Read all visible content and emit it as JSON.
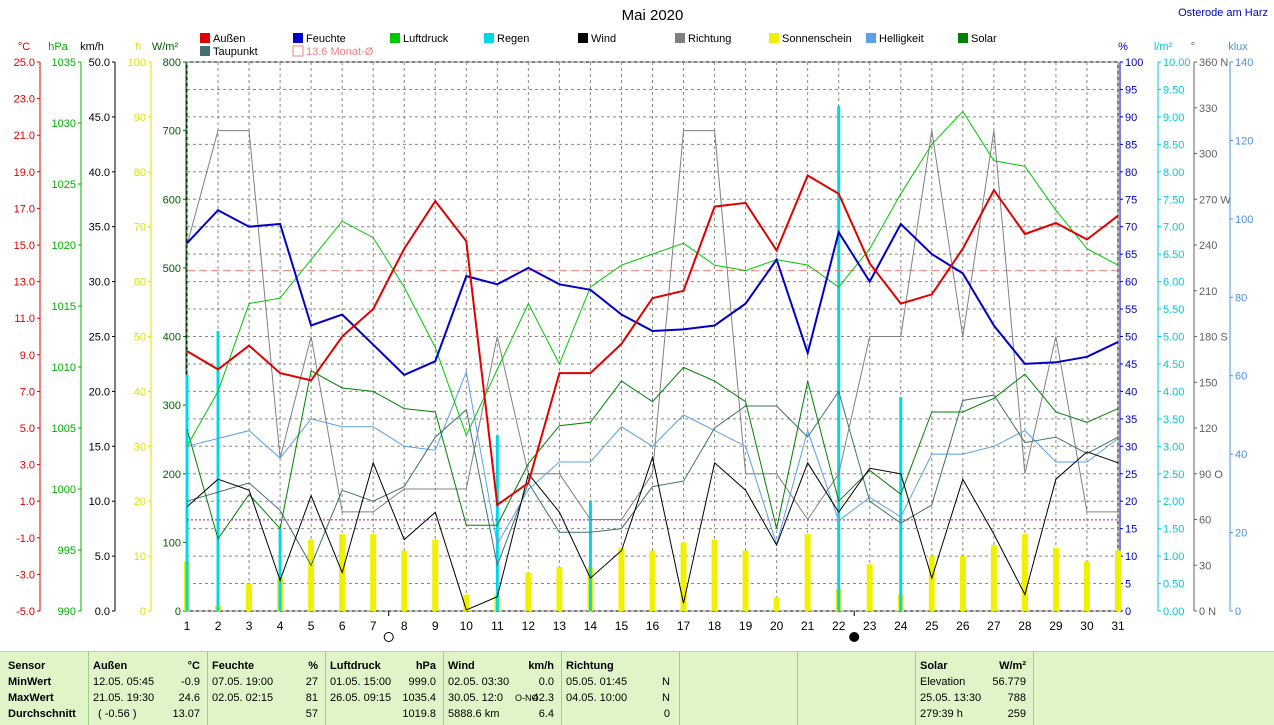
{
  "chart_data": {
    "type": "line",
    "title": "Mai 2020",
    "location": "Osterode am Harz",
    "x": [
      1,
      2,
      3,
      4,
      5,
      6,
      7,
      8,
      9,
      10,
      11,
      12,
      13,
      14,
      15,
      16,
      17,
      18,
      19,
      20,
      21,
      22,
      23,
      24,
      25,
      26,
      27,
      28,
      29,
      30,
      31
    ],
    "xlim": [
      1,
      31
    ],
    "moon_markers": [
      {
        "day": 7.5,
        "phase": "full"
      },
      {
        "day": 22.5,
        "phase": "new"
      }
    ],
    "axes_left": [
      {
        "unit": "°C",
        "color": "#e00000",
        "range": [
          -5,
          25
        ],
        "ticks": [
          "25.0",
          "23.0",
          "21.0",
          "19.0",
          "17.0",
          "15.0",
          "13.0",
          "11.0",
          "9.0",
          "7.0",
          "5.0",
          "3.0",
          "1.0",
          "-1.0",
          "-3.0",
          "-5.0"
        ]
      },
      {
        "unit": "hPa",
        "color": "#00b000",
        "range": [
          990,
          1040
        ],
        "ticks": [
          "1035",
          "1030",
          "1025",
          "1020",
          "1015",
          "1010",
          "1005",
          "1000",
          "995",
          "990"
        ]
      },
      {
        "unit": "km/h",
        "color": "#000000",
        "range": [
          0,
          50
        ],
        "ticks": [
          "50.0",
          "45.0",
          "40.0",
          "35.0",
          "30.0",
          "25.0",
          "20.0",
          "15.0",
          "10.0",
          "5.0",
          "0.0"
        ]
      },
      {
        "unit": "h",
        "color": "#e0e000",
        "range": [
          0,
          100
        ],
        "ticks": [
          "100",
          "90",
          "80",
          "70",
          "60",
          "50",
          "40",
          "30",
          "20",
          "10",
          "0"
        ]
      },
      {
        "unit": "W/m²",
        "color": "#006000",
        "range": [
          0,
          800
        ],
        "ticks": [
          "800",
          "700",
          "600",
          "500",
          "400",
          "300",
          "200",
          "100",
          "0"
        ]
      }
    ],
    "axes_right": [
      {
        "unit": "%",
        "color": "#0000c0",
        "range": [
          0,
          100
        ],
        "ticks": [
          "100",
          "95",
          "90",
          "85",
          "80",
          "75",
          "70",
          "65",
          "60",
          "55",
          "50",
          "45",
          "40",
          "35",
          "30",
          "25",
          "20",
          "15",
          "10",
          "5",
          "0"
        ]
      },
      {
        "unit": "l/m²",
        "color": "#00c8d8",
        "range": [
          0,
          10
        ],
        "ticks": [
          "10.00",
          "9.50",
          "9.00",
          "8.50",
          "8.00",
          "7.50",
          "7.00",
          "6.50",
          "6.00",
          "5.50",
          "5.00",
          "4.50",
          "4.00",
          "3.50",
          "3.00",
          "2.50",
          "2.00",
          "1.50",
          "1.00",
          "0.50",
          "0.00"
        ]
      },
      {
        "unit": "°",
        "color": "#606060",
        "range": [
          0,
          360
        ],
        "ticks": [
          "360 N",
          "330",
          "300",
          "270 W",
          "240",
          "210",
          "180 S",
          "150",
          "120",
          "90 O",
          "60",
          "30",
          "0 N"
        ]
      },
      {
        "unit": "klux",
        "color": "#4a90e0",
        "range": [
          0,
          140
        ],
        "ticks": [
          "140",
          "120",
          "100",
          "80",
          "60",
          "40",
          "20",
          "0"
        ]
      }
    ],
    "reference_line": {
      "name": "13.6 Monat-Ø",
      "value": 13.6,
      "unit": "°C",
      "color": "#f08080"
    },
    "wind_reference": {
      "value": 8.3,
      "unit": "km/h",
      "color": "#c000c0"
    },
    "series": [
      {
        "name": "Außen",
        "axis": "°C",
        "color": "#e00000",
        "values": [
          9.2,
          8.2,
          9.5,
          8.0,
          7.6,
          10.0,
          11.5,
          14.8,
          17.4,
          15.2,
          0.8,
          2.0,
          8.0,
          8.0,
          9.6,
          12.1,
          12.5,
          17.1,
          17.3,
          14.7,
          18.8,
          17.8,
          14.0,
          11.8,
          12.3,
          14.8,
          18.0,
          15.6,
          16.2,
          15.3,
          16.6
        ]
      },
      {
        "name": "Feuchte",
        "axis": "%",
        "color": "#0000c8",
        "values": [
          67,
          73,
          70,
          70.5,
          52,
          54,
          48.5,
          43,
          45.5,
          61,
          59.5,
          62.5,
          59.5,
          58.5,
          54,
          51,
          51.3,
          52,
          56,
          64,
          47,
          69,
          60,
          70.5,
          65,
          61.5,
          52,
          45,
          45.3,
          46.3,
          49
        ]
      },
      {
        "name": "Luftdruck",
        "axis": "hPa",
        "color": "#00c800",
        "values": [
          1005,
          1010,
          1018,
          1018.5,
          1022,
          1025.5,
          1024,
          1019.5,
          1014,
          1006,
          1012,
          1018,
          1012.5,
          1019.5,
          1021.5,
          1022.5,
          1023.5,
          1021.5,
          1021,
          1022,
          1021.5,
          1019.5,
          1023,
          1028,
          1032.5,
          1035.5,
          1031,
          1030.5,
          1026.5,
          1023,
          1021.5
        ]
      },
      {
        "name": "Taupunkt",
        "axis": "°C",
        "color": "#407070",
        "values": [
          1.0,
          1.5,
          2.0,
          0.5,
          -2.5,
          1.6,
          1.0,
          1.8,
          4.5,
          6.0,
          -2.5,
          2.0,
          -0.7,
          -0.7,
          -0.5,
          1.8,
          2.1,
          5.0,
          6.2,
          6.2,
          4.5,
          7.0,
          1.0,
          -0.2,
          0.8,
          6.5,
          6.8,
          4.2,
          4.5,
          3.6,
          4.5
        ]
      },
      {
        "name": "Richtung",
        "axis": "°",
        "color": "#808080",
        "values": [
          240,
          315,
          315,
          100,
          180,
          65,
          65,
          80,
          80,
          80,
          180,
          90,
          90,
          60,
          60,
          90,
          315,
          315,
          90,
          90,
          60,
          90,
          180,
          180,
          315,
          180,
          315,
          90,
          180,
          65,
          65
        ]
      },
      {
        "name": "Helligkeit",
        "axis": "klux",
        "color": "#5aa0e8",
        "values": [
          42,
          44,
          46,
          39,
          49,
          47,
          47,
          42,
          41,
          61,
          17,
          31,
          38,
          38,
          47,
          42,
          50,
          46,
          42,
          17,
          46,
          23,
          29,
          24,
          40,
          40,
          42,
          46,
          38,
          38,
          44
        ]
      },
      {
        "name": "Solar",
        "axis": "W/m²",
        "color": "#008000",
        "values": [
          265,
          105,
          170,
          120,
          350,
          325,
          320,
          295,
          290,
          125,
          125,
          215,
          270,
          275,
          335,
          305,
          355,
          335,
          305,
          120,
          335,
          160,
          205,
          170,
          290,
          290,
          310,
          345,
          290,
          275,
          295
        ]
      },
      {
        "name": "Wind",
        "axis": "km/h",
        "color": "#000000",
        "values": [
          9.5,
          12.0,
          11.0,
          2.8,
          10.5,
          3.5,
          13.5,
          6.5,
          9.0,
          0.1,
          1.3,
          12.5,
          9.0,
          3.0,
          5.5,
          14.0,
          0.7,
          13.5,
          11.0,
          6.0,
          13.5,
          9.0,
          13.0,
          12.5,
          3.0,
          12.0,
          7.0,
          1.5,
          12.0,
          14.5,
          13.5
        ]
      },
      {
        "name": "Sonnenschein",
        "axis": "h",
        "color": "#f0f000",
        "type": "bar",
        "values": [
          9,
          1,
          5,
          6,
          13,
          14,
          14,
          11,
          13,
          3,
          3,
          7,
          8,
          8,
          11.5,
          11,
          12.5,
          13,
          11,
          2.5,
          14,
          4,
          8.5,
          3,
          10,
          10,
          12,
          14,
          11.5,
          9,
          11
        ]
      },
      {
        "name": "Regen",
        "axis": "l/m²",
        "color": "#00d8e8",
        "type": "bar",
        "values": [
          4.3,
          5.1,
          0,
          1.5,
          0,
          0,
          0,
          0,
          0,
          0,
          3.2,
          0,
          0,
          2.0,
          0,
          0,
          0,
          0,
          0,
          0,
          0,
          9.2,
          0,
          3.9,
          0,
          0,
          0,
          0,
          0,
          0,
          0
        ]
      }
    ]
  },
  "legend": {
    "row1": [
      "Außen",
      "Feuchte",
      "Luftdruck",
      "Regen",
      "Wind",
      "Richtung",
      "Sonnenschein",
      "Helligkeit",
      "Solar"
    ],
    "row2": [
      "Taupunkt",
      "13.6 Monat-Ø"
    ]
  },
  "stats": {
    "labels": {
      "sensor": "Sensor",
      "min": "MinWert",
      "max": "MaxWert",
      "avg": "Durchschnitt"
    },
    "aussen": {
      "header": "Außen",
      "unit": "°C",
      "min_time": "12.05.  05:45",
      "min_val": "-0.9",
      "max_time": "21.05.  19:30",
      "max_val": "24.6",
      "avg_time": "( -0.56 )",
      "avg_val": "13.07"
    },
    "feuchte": {
      "header": "Feuchte",
      "unit": "%",
      "min_time": "07.05.  19:00",
      "min_val": "27",
      "max_time": "02.05.  02:15",
      "max_val": "81",
      "avg_val": "57"
    },
    "luftdruck": {
      "header": "Luftdruck",
      "unit": "hPa",
      "min_time": "01.05.  15:00",
      "min_val": "999.0",
      "max_time": "26.05.  09:15",
      "max_val": "1035.4",
      "avg_val": "1019.8"
    },
    "wind": {
      "header": "Wind",
      "unit": "km/h",
      "min_time": "02.05.  03:30",
      "min_val": "0.0",
      "max_time": "30.05.  12:0",
      "max_dir": "O-NO",
      "max_val": "42.3",
      "avg_time": "5888.6 km",
      "avg_val": "6.4"
    },
    "richtung": {
      "header": "Richtung",
      "min_time": "05.05.  01:45",
      "min_val": "N",
      "max_time": "04.05.  10:00",
      "max_val": "N",
      "avg_val": "0"
    },
    "solar": {
      "header": "Solar",
      "unit": "W/m²",
      "min_label": "Elevation",
      "min_val": "56.779",
      "max_time": "25.05.  13:30",
      "max_val": "788",
      "avg_time": "279:39 h",
      "avg_val": "259"
    }
  }
}
